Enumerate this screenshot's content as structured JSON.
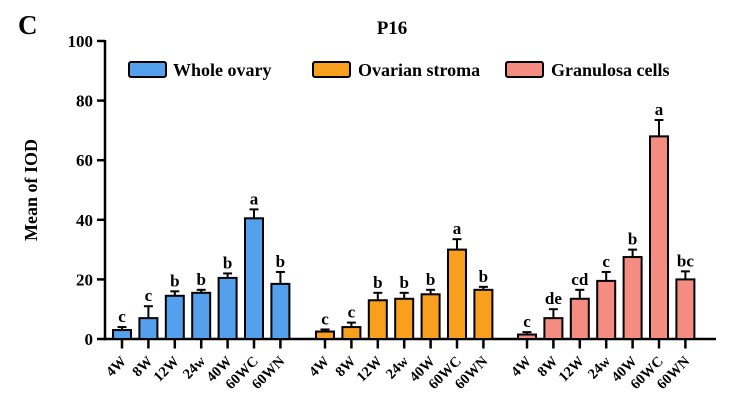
{
  "panel_label": "C",
  "chart_data": {
    "type": "bar",
    "title": "P16",
    "xlabel": "",
    "ylabel": "Mean of IOD",
    "ylim": [
      0,
      100
    ],
    "yticks": [
      0,
      20,
      40,
      60,
      80,
      100
    ],
    "grid": false,
    "legend_position": "top",
    "categories": [
      "4W",
      "8W",
      "12W",
      "24w",
      "40W",
      "60WC",
      "60WN"
    ],
    "series": [
      {
        "name": "Whole ovary",
        "color": "#55A0EC",
        "values": [
          3,
          7,
          14.5,
          15.5,
          20.5,
          40.5,
          18.5
        ],
        "errors": [
          1,
          4,
          1.5,
          1,
          1.5,
          3,
          4
        ],
        "letters": [
          "c",
          "c",
          "b",
          "b",
          "b",
          "a",
          "b"
        ]
      },
      {
        "name": "Ovarian stroma",
        "color": "#F8A01E",
        "values": [
          2.5,
          4,
          13,
          13.5,
          15,
          30,
          16.5
        ],
        "errors": [
          0.7,
          1.5,
          2.5,
          2,
          1.5,
          3.5,
          1
        ],
        "letters": [
          "c",
          "c",
          "b",
          "b",
          "b",
          "a",
          "b"
        ]
      },
      {
        "name": "Granulosa cells",
        "color": "#F48C82",
        "values": [
          1.5,
          7,
          13.5,
          19.5,
          27.5,
          68,
          20
        ],
        "errors": [
          0.8,
          3,
          3,
          3,
          2.5,
          5.5,
          2.7
        ],
        "letters": [
          "c",
          "de",
          "cd",
          "c",
          "b",
          "a",
          "bc"
        ]
      }
    ],
    "axis_color": "#000000"
  }
}
